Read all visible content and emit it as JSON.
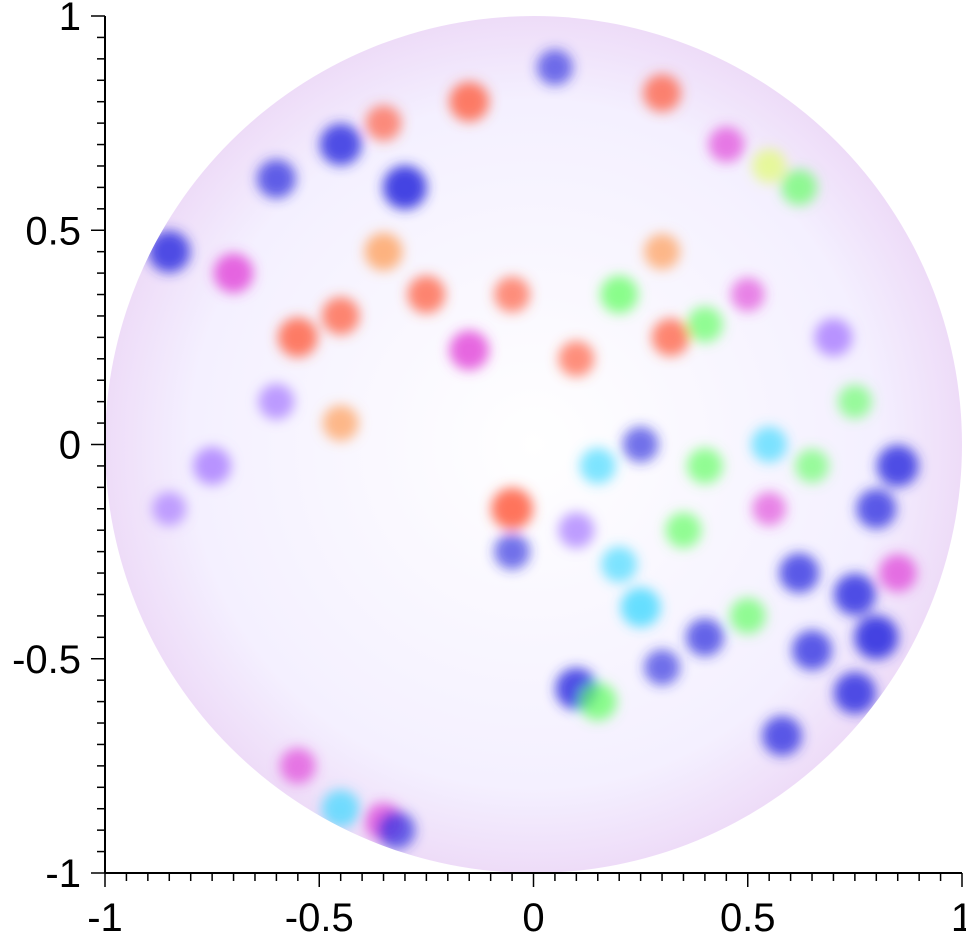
{
  "chart_data": {
    "type": "heatmap",
    "title": "",
    "xlabel": "",
    "ylabel": "",
    "xlim": [
      -1,
      1
    ],
    "ylim": [
      -1,
      1
    ],
    "x_ticks": [
      -1,
      -0.5,
      0,
      0.5,
      1
    ],
    "y_ticks": [
      -1,
      -0.5,
      0,
      0.5,
      1
    ],
    "x_tick_labels": [
      "-1",
      "-0.5",
      "0",
      "0.5",
      "1"
    ],
    "y_tick_labels": [
      "-1",
      "-0.5",
      "0",
      "0.5",
      "1"
    ],
    "minor_tick_step": 0.05,
    "grid": false,
    "legend": "none",
    "domain_shape": "unit disk",
    "domain_radius": 1.0,
    "color_encoding": "hue-phase map over a disk",
    "colors": {
      "red": "#ff5a3c",
      "orange": "#ff9a50",
      "magenta": "#e040d8",
      "blue": "#3030e0",
      "cyan": "#40d8ff",
      "green": "#60ff60",
      "yellow": "#e0ff60",
      "violet": "#a070ff"
    },
    "blobs": [
      {
        "x": -0.85,
        "y": 0.45,
        "color": "blue",
        "strength": 0.9
      },
      {
        "x": -0.7,
        "y": 0.4,
        "color": "magenta",
        "strength": 0.8
      },
      {
        "x": -0.6,
        "y": 0.62,
        "color": "blue",
        "strength": 0.75
      },
      {
        "x": -0.45,
        "y": 0.7,
        "color": "blue",
        "strength": 0.9
      },
      {
        "x": -0.3,
        "y": 0.6,
        "color": "blue",
        "strength": 1.0
      },
      {
        "x": -0.35,
        "y": 0.75,
        "color": "red",
        "strength": 0.6
      },
      {
        "x": -0.15,
        "y": 0.8,
        "color": "red",
        "strength": 0.8
      },
      {
        "x": 0.05,
        "y": 0.88,
        "color": "blue",
        "strength": 0.6
      },
      {
        "x": 0.3,
        "y": 0.82,
        "color": "red",
        "strength": 0.7
      },
      {
        "x": 0.45,
        "y": 0.7,
        "color": "magenta",
        "strength": 0.6
      },
      {
        "x": 0.55,
        "y": 0.65,
        "color": "yellow",
        "strength": 0.5
      },
      {
        "x": 0.62,
        "y": 0.6,
        "color": "green",
        "strength": 0.6
      },
      {
        "x": -0.55,
        "y": 0.25,
        "color": "red",
        "strength": 0.8
      },
      {
        "x": -0.45,
        "y": 0.3,
        "color": "red",
        "strength": 0.7
      },
      {
        "x": -0.35,
        "y": 0.45,
        "color": "orange",
        "strength": 0.7
      },
      {
        "x": -0.25,
        "y": 0.35,
        "color": "red",
        "strength": 0.7
      },
      {
        "x": -0.15,
        "y": 0.22,
        "color": "magenta",
        "strength": 0.8
      },
      {
        "x": -0.05,
        "y": 0.35,
        "color": "red",
        "strength": 0.6
      },
      {
        "x": 0.1,
        "y": 0.2,
        "color": "red",
        "strength": 0.6
      },
      {
        "x": 0.2,
        "y": 0.35,
        "color": "green",
        "strength": 0.7
      },
      {
        "x": 0.3,
        "y": 0.45,
        "color": "orange",
        "strength": 0.6
      },
      {
        "x": 0.32,
        "y": 0.25,
        "color": "red",
        "strength": 0.7
      },
      {
        "x": 0.4,
        "y": 0.28,
        "color": "green",
        "strength": 0.6
      },
      {
        "x": 0.5,
        "y": 0.35,
        "color": "magenta",
        "strength": 0.5
      },
      {
        "x": 0.7,
        "y": 0.25,
        "color": "violet",
        "strength": 0.7
      },
      {
        "x": 0.75,
        "y": 0.1,
        "color": "green",
        "strength": 0.5
      },
      {
        "x": -0.6,
        "y": 0.1,
        "color": "violet",
        "strength": 0.6
      },
      {
        "x": -0.45,
        "y": 0.05,
        "color": "orange",
        "strength": 0.6
      },
      {
        "x": -0.75,
        "y": -0.05,
        "color": "violet",
        "strength": 0.7
      },
      {
        "x": -0.85,
        "y": -0.15,
        "color": "violet",
        "strength": 0.5
      },
      {
        "x": 0.15,
        "y": -0.05,
        "color": "cyan",
        "strength": 0.6
      },
      {
        "x": 0.25,
        "y": 0.0,
        "color": "blue",
        "strength": 0.6
      },
      {
        "x": 0.4,
        "y": -0.05,
        "color": "green",
        "strength": 0.6
      },
      {
        "x": 0.55,
        "y": 0.0,
        "color": "cyan",
        "strength": 0.6
      },
      {
        "x": 0.65,
        "y": -0.05,
        "color": "green",
        "strength": 0.5
      },
      {
        "x": -0.05,
        "y": -0.15,
        "color": "red",
        "strength": 0.9
      },
      {
        "x": 0.1,
        "y": -0.2,
        "color": "violet",
        "strength": 0.6
      },
      {
        "x": -0.05,
        "y": -0.25,
        "color": "blue",
        "strength": 0.6
      },
      {
        "x": 0.2,
        "y": -0.28,
        "color": "cyan",
        "strength": 0.6
      },
      {
        "x": 0.35,
        "y": -0.2,
        "color": "green",
        "strength": 0.6
      },
      {
        "x": 0.55,
        "y": -0.15,
        "color": "magenta",
        "strength": 0.5
      },
      {
        "x": 0.8,
        "y": -0.15,
        "color": "blue",
        "strength": 0.8
      },
      {
        "x": 0.85,
        "y": -0.05,
        "color": "blue",
        "strength": 0.9
      },
      {
        "x": 0.25,
        "y": -0.38,
        "color": "cyan",
        "strength": 0.8
      },
      {
        "x": 0.4,
        "y": -0.45,
        "color": "blue",
        "strength": 0.7
      },
      {
        "x": 0.5,
        "y": -0.4,
        "color": "green",
        "strength": 0.6
      },
      {
        "x": 0.62,
        "y": -0.3,
        "color": "blue",
        "strength": 0.8
      },
      {
        "x": 0.75,
        "y": -0.35,
        "color": "blue",
        "strength": 0.9
      },
      {
        "x": 0.85,
        "y": -0.3,
        "color": "magenta",
        "strength": 0.7
      },
      {
        "x": 0.8,
        "y": -0.45,
        "color": "blue",
        "strength": 1.0
      },
      {
        "x": 0.65,
        "y": -0.48,
        "color": "blue",
        "strength": 0.8
      },
      {
        "x": 0.1,
        "y": -0.57,
        "color": "blue",
        "strength": 0.9
      },
      {
        "x": 0.15,
        "y": -0.6,
        "color": "green",
        "strength": 0.7
      },
      {
        "x": 0.3,
        "y": -0.52,
        "color": "blue",
        "strength": 0.6
      },
      {
        "x": 0.58,
        "y": -0.68,
        "color": "blue",
        "strength": 0.8
      },
      {
        "x": 0.75,
        "y": -0.58,
        "color": "blue",
        "strength": 0.9
      },
      {
        "x": -0.55,
        "y": -0.75,
        "color": "magenta",
        "strength": 0.6
      },
      {
        "x": -0.45,
        "y": -0.85,
        "color": "cyan",
        "strength": 0.7
      },
      {
        "x": -0.35,
        "y": -0.88,
        "color": "magenta",
        "strength": 0.7
      },
      {
        "x": -0.32,
        "y": -0.9,
        "color": "blue",
        "strength": 0.7
      }
    ]
  }
}
